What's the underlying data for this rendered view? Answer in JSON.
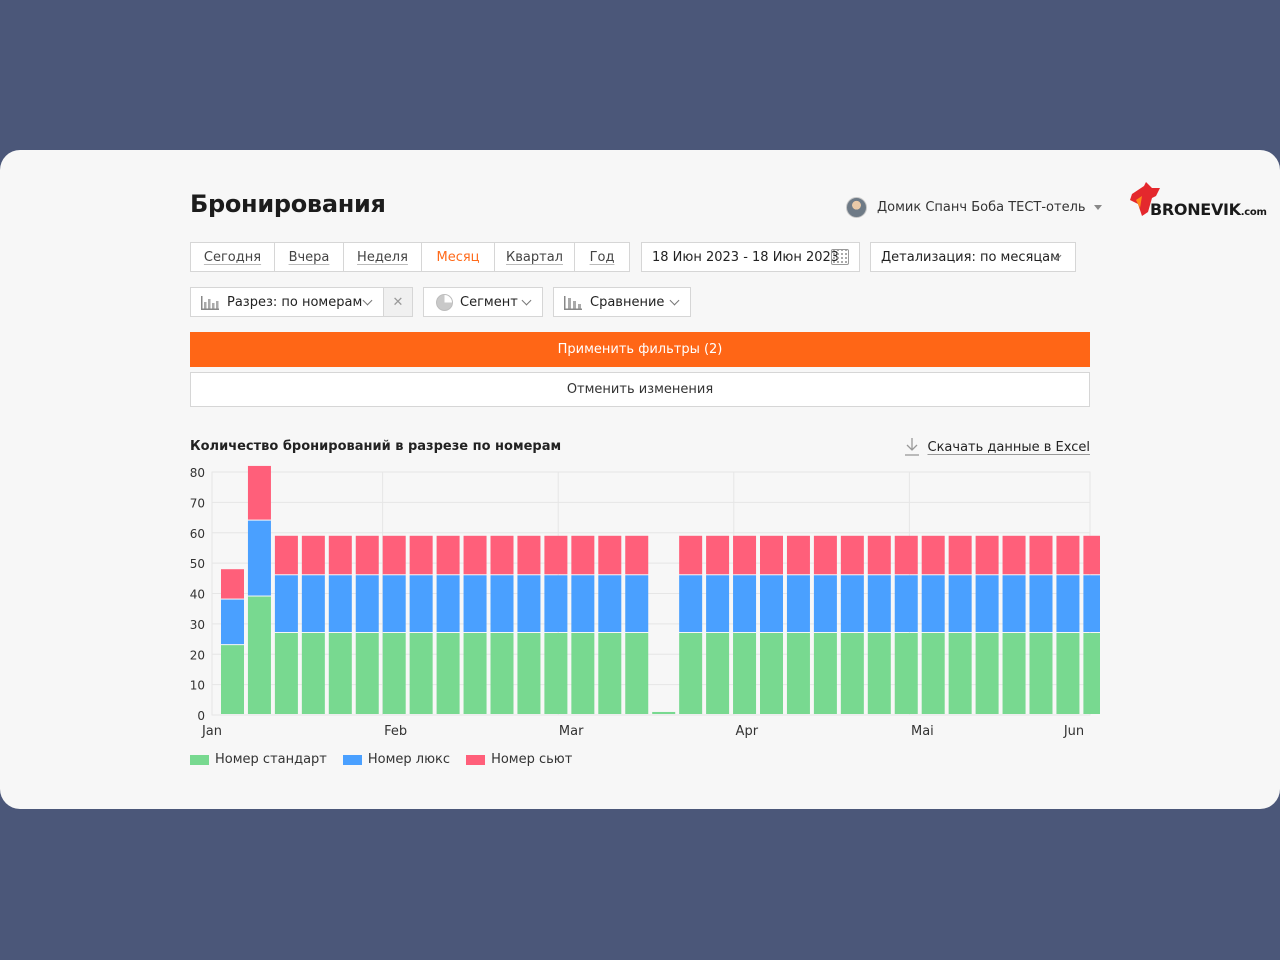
{
  "page": {
    "title": "Бронирования",
    "user_name": "Домик Спанч Боба ТЕСТ-отель",
    "logo_text": "BRONEVIK",
    "logo_suffix": ".com"
  },
  "period_tabs": [
    {
      "label": "Сегодня"
    },
    {
      "label": "Вчера"
    },
    {
      "label": "Неделя"
    },
    {
      "label": "Месяц",
      "active": true
    },
    {
      "label": "Квартал"
    },
    {
      "label": "Год"
    }
  ],
  "date_range": "18 Июн 2023 - 18 Июн 2023",
  "detail_select": "Детализация: по месяцам",
  "filters": {
    "slice": "Разрез: по номерам",
    "clear": "✕",
    "segment": "Сегмент",
    "compare": "Сравнение"
  },
  "buttons": {
    "apply": "Применить фильтры (2)",
    "cancel": "Отменить изменения"
  },
  "chart_section": {
    "title": "Количество бронирований в разрезе по номерам",
    "excel_link": "Скачать данные в Excel"
  },
  "colors": {
    "accent": "#ff6616",
    "standard": "#78d990",
    "lux": "#4aa0ff",
    "suite": "#ff5f7a"
  },
  "chart_data": {
    "type": "bar",
    "stacked": true,
    "ylim": [
      0,
      80
    ],
    "y_ticks": [
      0,
      10,
      20,
      30,
      40,
      50,
      60,
      70,
      80
    ],
    "x_tick_labels": [
      "Jan",
      "Feb",
      "Mar",
      "Apr",
      "Mai",
      "Jun"
    ],
    "grid": true,
    "legend_position": "bottom-left",
    "series": [
      {
        "name": "Номер стандарт",
        "color": "#78d990",
        "values": [
          23,
          39,
          27,
          27,
          27,
          27,
          27,
          27,
          27,
          27,
          27,
          27,
          27,
          27,
          27,
          27,
          1,
          27,
          27,
          27,
          27,
          27,
          27,
          27,
          27,
          27,
          27,
          27,
          27,
          27,
          27,
          27,
          27
        ]
      },
      {
        "name": "Номер люкс",
        "color": "#4aa0ff",
        "values": [
          15,
          25,
          19,
          19,
          19,
          19,
          19,
          19,
          19,
          19,
          19,
          19,
          19,
          19,
          19,
          19,
          0,
          19,
          19,
          19,
          19,
          19,
          19,
          19,
          19,
          19,
          19,
          19,
          19,
          19,
          19,
          19,
          19
        ]
      },
      {
        "name": "Номер сьют",
        "color": "#ff5f7a",
        "values": [
          10,
          18,
          13,
          13,
          13,
          13,
          13,
          13,
          13,
          13,
          13,
          13,
          13,
          13,
          13,
          13,
          0,
          13,
          13,
          13,
          13,
          13,
          13,
          13,
          13,
          13,
          13,
          13,
          13,
          13,
          13,
          13,
          13
        ]
      }
    ]
  }
}
